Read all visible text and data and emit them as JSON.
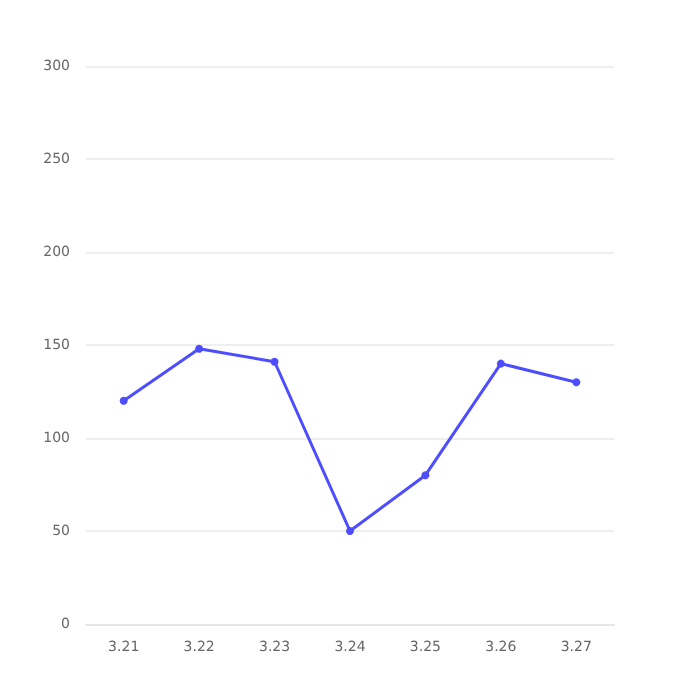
{
  "chart_data": {
    "type": "line",
    "categories": [
      "3.21",
      "3.22",
      "3.23",
      "3.24",
      "3.25",
      "3.26",
      "3.27"
    ],
    "series": [
      {
        "color": "#4d4dff",
        "values": [
          120,
          148,
          141,
          50,
          80,
          140,
          130
        ]
      }
    ],
    "ylim": [
      0,
      300
    ],
    "yticks": [
      0,
      50,
      100,
      150,
      200,
      250,
      300
    ],
    "grid": "y",
    "marker": "circle"
  }
}
